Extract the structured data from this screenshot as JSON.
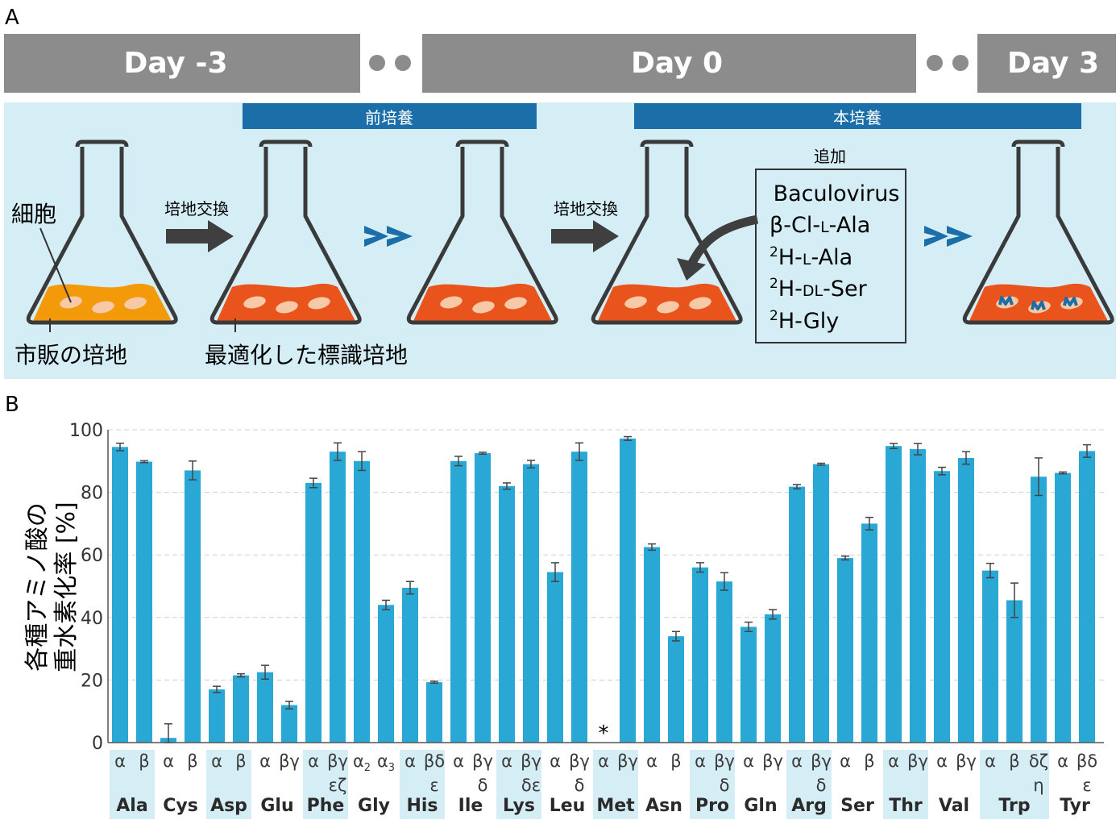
{
  "panel_a": {
    "label": "A",
    "day_bars": [
      {
        "label": "Day -3"
      },
      {
        "label": "Day 0"
      },
      {
        "label": "Day 3"
      }
    ],
    "stage_bars": [
      {
        "label": "前培養"
      },
      {
        "label": "本培養"
      }
    ],
    "medium_exchange": "培地交換",
    "cell_label": "細胞",
    "commercial_medium": "市販の培地",
    "optimized_medium": "最適化した標識培地",
    "addition_title": "追加",
    "additions": [
      "Baculovirus",
      "β-Cl-L-Ala",
      "2H-L-Ala",
      "2H-DL-Ser",
      "2H-Gly"
    ],
    "colors": {
      "day_bar": "#8c8c8c",
      "stage_bar": "#1b6ea8",
      "background": "#d5eef6",
      "commercial": "#f39a0a",
      "labeled": "#e9531c",
      "chevron": "#1b6ea8"
    }
  },
  "panel_b": {
    "label": "B",
    "ylabel_line1": "各種アミノ酸の",
    "ylabel_line2": "重水素化率 [%]",
    "asterisk": "*",
    "chart_data": {
      "type": "bar",
      "ylim": [
        0,
        100
      ],
      "yticks": [
        0,
        20,
        40,
        60,
        80,
        100
      ],
      "grid": "horizontal dashed",
      "color": "#29a8d6",
      "groups": [
        {
          "name": "Ala",
          "shaded": true,
          "bars": [
            {
              "pos": [
                "α"
              ],
              "value": 94.5,
              "err": 1.2
            },
            {
              "pos": [
                "β"
              ],
              "value": 89.8,
              "err": 0.3
            }
          ]
        },
        {
          "name": "Cys",
          "shaded": false,
          "bars": [
            {
              "pos": [
                "α"
              ],
              "value": 1.5,
              "err": 4.5
            },
            {
              "pos": [
                "β"
              ],
              "value": 87.0,
              "err": 3.0
            }
          ]
        },
        {
          "name": "Asp",
          "shaded": true,
          "bars": [
            {
              "pos": [
                "α"
              ],
              "value": 17.0,
              "err": 1.0
            },
            {
              "pos": [
                "β"
              ],
              "value": 21.5,
              "err": 0.5
            }
          ]
        },
        {
          "name": "Glu",
          "shaded": false,
          "bars": [
            {
              "pos": [
                "α"
              ],
              "value": 22.5,
              "err": 2.2
            },
            {
              "pos": [
                "βγ"
              ],
              "value": 12.0,
              "err": 1.2
            }
          ]
        },
        {
          "name": "Phe",
          "shaded": true,
          "bars": [
            {
              "pos": [
                "α"
              ],
              "value": 83.0,
              "err": 1.5
            },
            {
              "pos": [
                "βγ",
                "εζ"
              ],
              "value": 93.0,
              "err": 2.8
            }
          ]
        },
        {
          "name": "Gly",
          "shaded": false,
          "bars": [
            {
              "pos": [
                "α2"
              ],
              "value": 90.0,
              "err": 3.0
            },
            {
              "pos": [
                "α3"
              ],
              "value": 44.0,
              "err": 1.5
            }
          ]
        },
        {
          "name": "His",
          "shaded": true,
          "bars": [
            {
              "pos": [
                "α"
              ],
              "value": 49.5,
              "err": 2.0
            },
            {
              "pos": [
                "βδ",
                "ε"
              ],
              "value": 19.3,
              "err": 0.3
            }
          ]
        },
        {
          "name": "Ile",
          "shaded": false,
          "bars": [
            {
              "pos": [
                "α"
              ],
              "value": 90.0,
              "err": 1.5
            },
            {
              "pos": [
                "βγ",
                "δ"
              ],
              "value": 92.5,
              "err": 0.3
            }
          ]
        },
        {
          "name": "Lys",
          "shaded": true,
          "bars": [
            {
              "pos": [
                "α"
              ],
              "value": 82.0,
              "err": 1.0
            },
            {
              "pos": [
                "βγ",
                "δε"
              ],
              "value": 89.0,
              "err": 1.2
            }
          ]
        },
        {
          "name": "Leu",
          "shaded": false,
          "bars": [
            {
              "pos": [
                "α"
              ],
              "value": 54.5,
              "err": 3.0
            },
            {
              "pos": [
                "βγ",
                "δ"
              ],
              "value": 93.0,
              "err": 2.8
            }
          ]
        },
        {
          "name": "Met",
          "shaded": true,
          "bars": [
            {
              "pos": [
                "α"
              ],
              "value": null,
              "err": null
            },
            {
              "pos": [
                "βγ"
              ],
              "value": 97.2,
              "err": 0.6
            }
          ]
        },
        {
          "name": "Asn",
          "shaded": false,
          "bars": [
            {
              "pos": [
                "α"
              ],
              "value": 62.5,
              "err": 1.0
            },
            {
              "pos": [
                "β"
              ],
              "value": 34.0,
              "err": 1.5
            }
          ]
        },
        {
          "name": "Pro",
          "shaded": true,
          "bars": [
            {
              "pos": [
                "α"
              ],
              "value": 56.0,
              "err": 1.5
            },
            {
              "pos": [
                "βγ",
                "δ"
              ],
              "value": 51.5,
              "err": 2.8
            }
          ]
        },
        {
          "name": "Gln",
          "shaded": false,
          "bars": [
            {
              "pos": [
                "α"
              ],
              "value": 37.0,
              "err": 1.5
            },
            {
              "pos": [
                "βγ"
              ],
              "value": 41.0,
              "err": 1.5
            }
          ]
        },
        {
          "name": "Arg",
          "shaded": true,
          "bars": [
            {
              "pos": [
                "α"
              ],
              "value": 81.8,
              "err": 0.7
            },
            {
              "pos": [
                "βγ",
                "δ"
              ],
              "value": 89.0,
              "err": 0.3
            }
          ]
        },
        {
          "name": "Ser",
          "shaded": false,
          "bars": [
            {
              "pos": [
                "α"
              ],
              "value": 59.0,
              "err": 0.6
            },
            {
              "pos": [
                "β"
              ],
              "value": 70.0,
              "err": 2.0
            }
          ]
        },
        {
          "name": "Thr",
          "shaded": true,
          "bars": [
            {
              "pos": [
                "α"
              ],
              "value": 94.8,
              "err": 0.8
            },
            {
              "pos": [
                "βγ"
              ],
              "value": 93.8,
              "err": 1.8
            }
          ]
        },
        {
          "name": "Val",
          "shaded": false,
          "bars": [
            {
              "pos": [
                "α"
              ],
              "value": 86.8,
              "err": 1.2
            },
            {
              "pos": [
                "βγ"
              ],
              "value": 91.0,
              "err": 2.0
            }
          ]
        },
        {
          "name": "Trp",
          "shaded": true,
          "bars": [
            {
              "pos": [
                "α"
              ],
              "value": 55.0,
              "err": 2.3
            },
            {
              "pos": [
                "β"
              ],
              "value": 45.5,
              "err": 5.5
            },
            {
              "pos": [
                "δζ",
                "η"
              ],
              "value": 85.0,
              "err": 6.0
            }
          ]
        },
        {
          "name": "Tyr",
          "shaded": false,
          "bars": [
            {
              "pos": [
                "α"
              ],
              "value": 86.2,
              "err": 0.3
            },
            {
              "pos": [
                "βδ",
                "ε"
              ],
              "value": 93.2,
              "err": 2.0
            }
          ]
        }
      ]
    }
  }
}
